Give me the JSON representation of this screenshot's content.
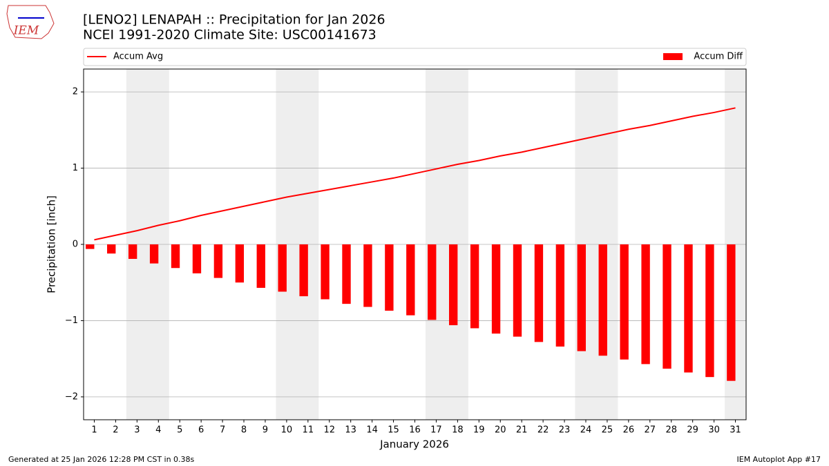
{
  "logo": "IEM",
  "footer_left": "Generated at 25 Jan 2026 12:28 PM CST in 0.38s",
  "footer_right": "IEM Autoplot App #17",
  "chart_data": {
    "type": "bar-line",
    "title": "[LENO2] LENAPAH :: Precipitation for Jan 2026",
    "subtitle": "NCEI 1991-2020 Climate Site: USC00141673",
    "x_label": "January 2026",
    "y_label": "Precipitation [inch]",
    "x": [
      1,
      2,
      3,
      4,
      5,
      6,
      7,
      8,
      9,
      10,
      11,
      12,
      13,
      14,
      15,
      16,
      17,
      18,
      19,
      20,
      21,
      22,
      23,
      24,
      25,
      26,
      27,
      28,
      29,
      30,
      31
    ],
    "xlim": [
      0.5,
      31.5
    ],
    "ylim": [
      -2.3,
      2.3
    ],
    "yticks": [
      {
        "value": -2,
        "label": "−2"
      },
      {
        "value": -1,
        "label": "−1"
      },
      0,
      1,
      2
    ],
    "grid": true,
    "shaded_ranges": [
      [
        2.5,
        4.5
      ],
      [
        9.5,
        11.5
      ],
      [
        16.5,
        18.5
      ],
      [
        23.5,
        25.5
      ],
      [
        30.5,
        31.5
      ]
    ],
    "shade_color": "#eeeeee",
    "series": [
      {
        "name": "Accum Avg",
        "kind": "line",
        "color": "#ff0000",
        "values": [
          0.06,
          0.12,
          0.18,
          0.25,
          0.31,
          0.38,
          0.44,
          0.5,
          0.56,
          0.62,
          0.67,
          0.72,
          0.77,
          0.82,
          0.87,
          0.93,
          0.99,
          1.05,
          1.1,
          1.16,
          1.21,
          1.27,
          1.33,
          1.39,
          1.45,
          1.51,
          1.56,
          1.62,
          1.68,
          1.73,
          1.79
        ]
      },
      {
        "name": "Accum Diff",
        "kind": "bar",
        "color": "#ff0000",
        "values": [
          -0.06,
          -0.12,
          -0.19,
          -0.25,
          -0.31,
          -0.38,
          -0.44,
          -0.5,
          -0.57,
          -0.62,
          -0.68,
          -0.72,
          -0.78,
          -0.82,
          -0.87,
          -0.93,
          -0.99,
          -1.06,
          -1.1,
          -1.17,
          -1.21,
          -1.28,
          -1.34,
          -1.4,
          -1.46,
          -1.51,
          -1.57,
          -1.63,
          -1.68,
          -1.74,
          -1.79
        ]
      }
    ]
  }
}
